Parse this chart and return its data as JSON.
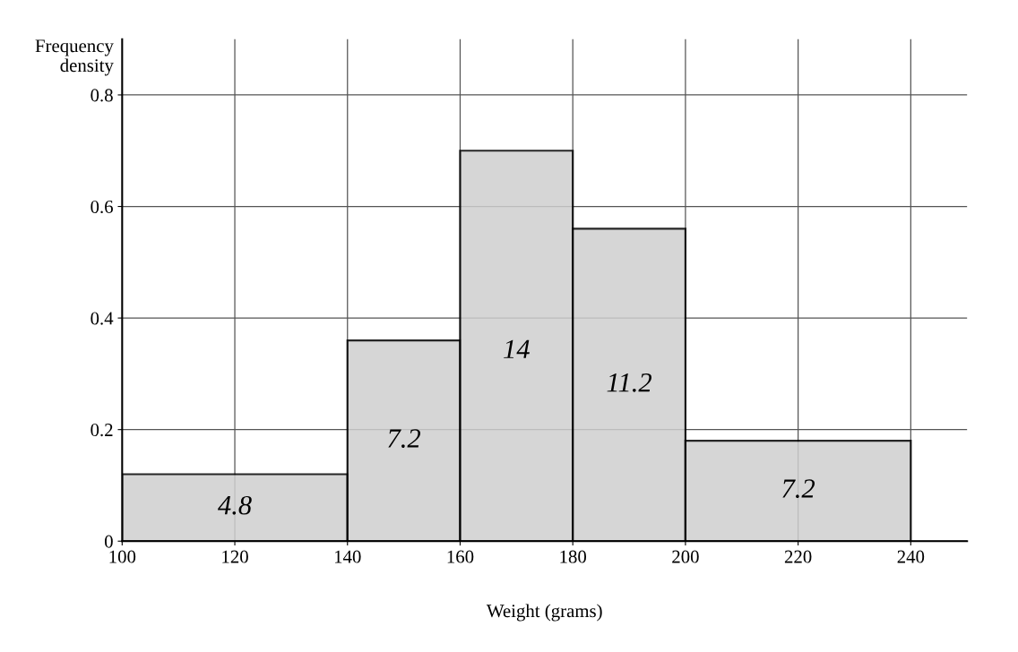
{
  "chart_data": {
    "type": "histogram",
    "xlabel": "Weight (grams)",
    "ylabel": "Frequency density",
    "bins": [
      100,
      140,
      160,
      180,
      200,
      240
    ],
    "values": [
      0.12,
      0.36,
      0.7,
      0.56,
      0.18
    ],
    "annotations": [
      "4.8",
      "7.2",
      "14",
      "11.2",
      "7.2"
    ],
    "color": "#cfcfcf",
    "xlim": [
      100,
      250
    ],
    "xticks": [
      100,
      120,
      140,
      160,
      180,
      200,
      220,
      240
    ],
    "ylim": [
      0,
      0.9
    ],
    "yticks": [
      0,
      0.2,
      0.4,
      0.6,
      0.8
    ],
    "grid": true
  }
}
